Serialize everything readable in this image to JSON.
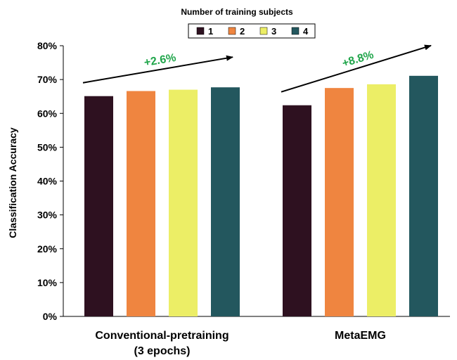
{
  "chart_data": {
    "type": "bar",
    "categories": [
      "Conventional-pretraining\n(3 epochs)",
      "MetaEMG"
    ],
    "legend_title": "Number of training subjects",
    "series": [
      {
        "name": "1",
        "values": [
          65.1,
          62.4
        ]
      },
      {
        "name": "2",
        "values": [
          66.6,
          67.5
        ]
      },
      {
        "name": "3",
        "values": [
          67.0,
          68.6
        ]
      },
      {
        "name": "4",
        "values": [
          67.7,
          71.1
        ]
      }
    ],
    "ylabel": "Classification Accuracy",
    "ylim": [
      0,
      80
    ],
    "yticks": [
      "0%",
      "10%",
      "20%",
      "30%",
      "40%",
      "50%",
      "60%",
      "70%",
      "80%"
    ],
    "grid": false,
    "legend_position": "top-center",
    "annotations": [
      {
        "text": "+2.6%",
        "group": 0
      },
      {
        "text": "+8.8%",
        "group": 1
      }
    ],
    "colors": {
      "series": [
        "#2e1120",
        "#ef8540",
        "#ecee66",
        "#23575e"
      ],
      "annotation": "#1fa54a",
      "axis": "#000000"
    }
  }
}
